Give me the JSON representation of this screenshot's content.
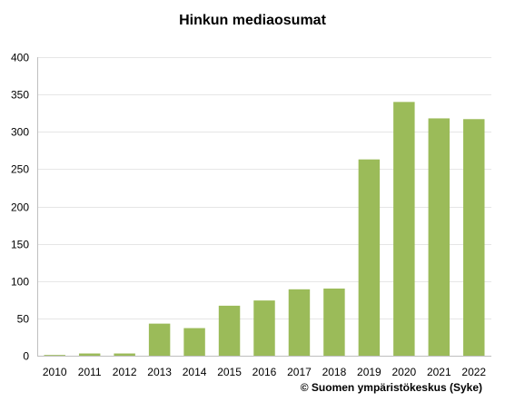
{
  "chart_data": {
    "type": "bar",
    "title": "Hinkun mediaosumat",
    "categories": [
      "2010",
      "2011",
      "2012",
      "2013",
      "2014",
      "2015",
      "2016",
      "2017",
      "2018",
      "2019",
      "2020",
      "2021",
      "2022"
    ],
    "values": [
      1,
      3,
      3,
      43,
      37,
      67,
      74,
      89,
      90,
      263,
      340,
      318,
      317
    ],
    "ylim": [
      0,
      400
    ],
    "yticks": [
      "0",
      "50",
      "100",
      "150",
      "200",
      "250",
      "300",
      "350",
      "400"
    ],
    "grid": true,
    "legend": "none",
    "bar_color": "#9BBB59",
    "grid_color": "#E6E6E6",
    "axis_color": "#BFBFBF",
    "source": "© Suomen ympäristökeskus (Syke)"
  }
}
